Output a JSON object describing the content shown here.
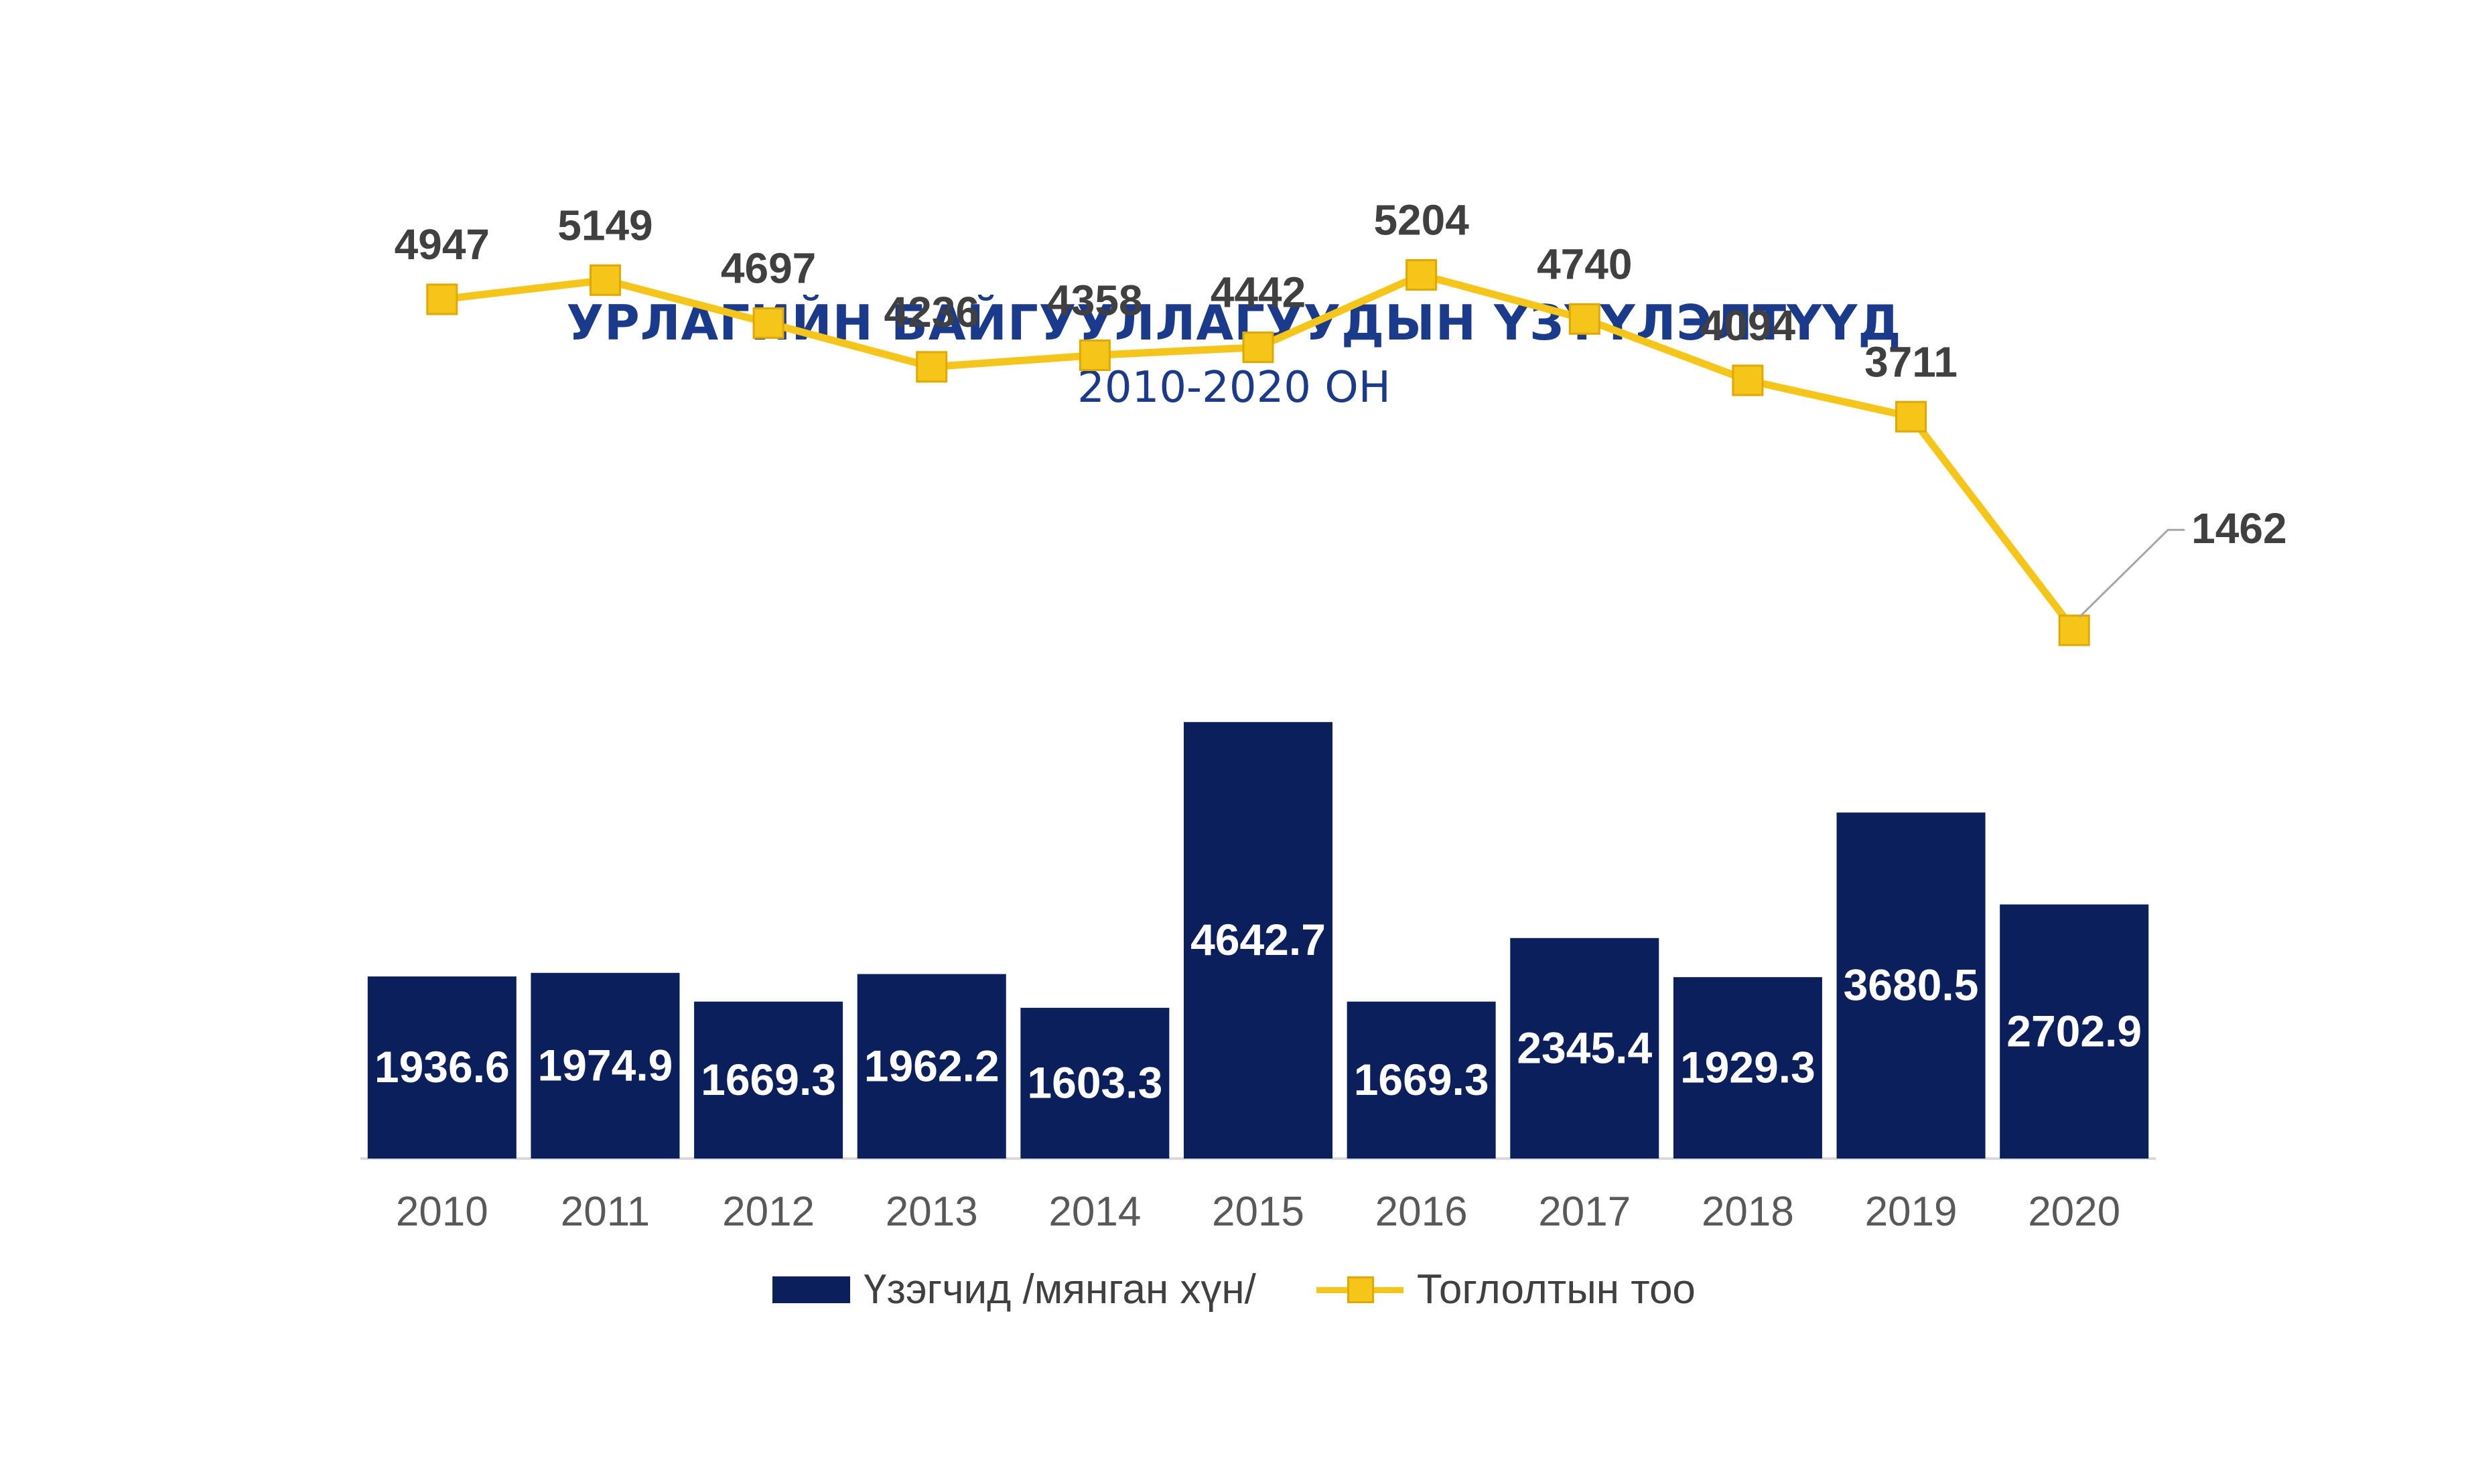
{
  "title": "УРЛАГИЙН БАЙГУУЛЛАГУУДЫН ҮЗҮҮЛЭЛТҮҮД",
  "subtitle": "2010-2020 ОН",
  "colors": {
    "bar": "#0b1f5c",
    "line": "#f5c518",
    "marker": "#f5c518",
    "marker_edge": "#e0a800",
    "axis": "#d9d9d9",
    "label_dark": "#404040",
    "bar_label": "#ffffff"
  },
  "chart_data": {
    "type": "bar",
    "categories": [
      "2010",
      "2011",
      "2012",
      "2013",
      "2014",
      "2015",
      "2016",
      "2017",
      "2018",
      "2019",
      "2020"
    ],
    "series": [
      {
        "name": "Үзэгчид /мянган хүн/",
        "type": "bar",
        "values": [
          1936.6,
          1974.9,
          1669.3,
          1962.2,
          1603.3,
          4642.7,
          1669.3,
          2345.4,
          1929.3,
          3680.5,
          2702.9
        ],
        "labels": [
          "1936.6",
          "1974.9",
          "1669.3",
          "1962.2",
          "1603.3",
          "4642.7",
          "1669.3",
          "2345.4",
          "1929.3",
          "3680.5",
          "2702.9"
        ]
      },
      {
        "name": "Тоглолтын тоо",
        "type": "line",
        "values": [
          4947,
          5149,
          4697,
          4236,
          4358,
          4442,
          5204,
          4740,
          4094,
          3711,
          1462
        ],
        "labels": [
          "4947",
          "5149",
          "4697",
          "4236",
          "4358",
          "4442",
          "5204",
          "4740",
          "4094",
          "3711",
          "1462"
        ]
      }
    ],
    "bar_ylim": [
      0,
      5200
    ],
    "line_ylim": [
      -4100,
      6900
    ],
    "legend_position": "bottom",
    "grid": false
  },
  "legend": {
    "bar_label": "Үзэгчид /мянган хүн/",
    "line_label": "Тоглолтын тоо"
  }
}
